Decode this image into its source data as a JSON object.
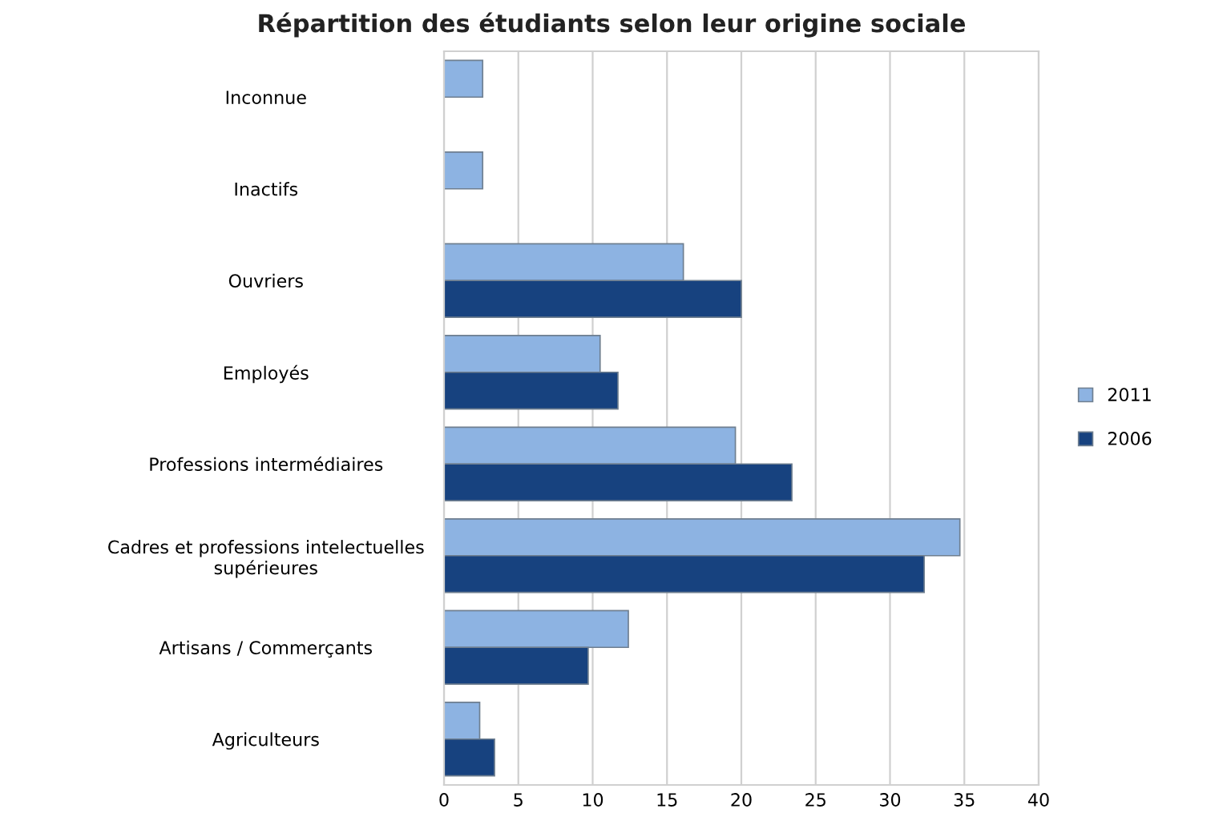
{
  "chart_data": {
    "type": "bar",
    "orientation": "horizontal",
    "title": "Répartition des étudiants selon leur origine sociale",
    "categories": [
      "Inconnue",
      "Inactifs",
      "Ouvriers",
      "Employés",
      "Professions intermédiaires",
      "Cadres et professions intelectuelles\nsupérieures",
      "Artisans / Commerçants",
      "Agriculteurs"
    ],
    "series": [
      {
        "name": "2011",
        "color": "#8db3e2",
        "values": [
          2.6,
          2.6,
          16.1,
          10.5,
          19.6,
          34.7,
          12.4,
          2.4
        ]
      },
      {
        "name": "2006",
        "color": "#17427f",
        "values": [
          null,
          null,
          20.0,
          11.7,
          23.4,
          32.3,
          9.7,
          3.4
        ]
      }
    ],
    "xlim": [
      0,
      40
    ],
    "xticks": [
      0,
      5,
      10,
      15,
      20,
      25,
      30,
      35,
      40
    ],
    "grid": "x",
    "legend": "right"
  }
}
